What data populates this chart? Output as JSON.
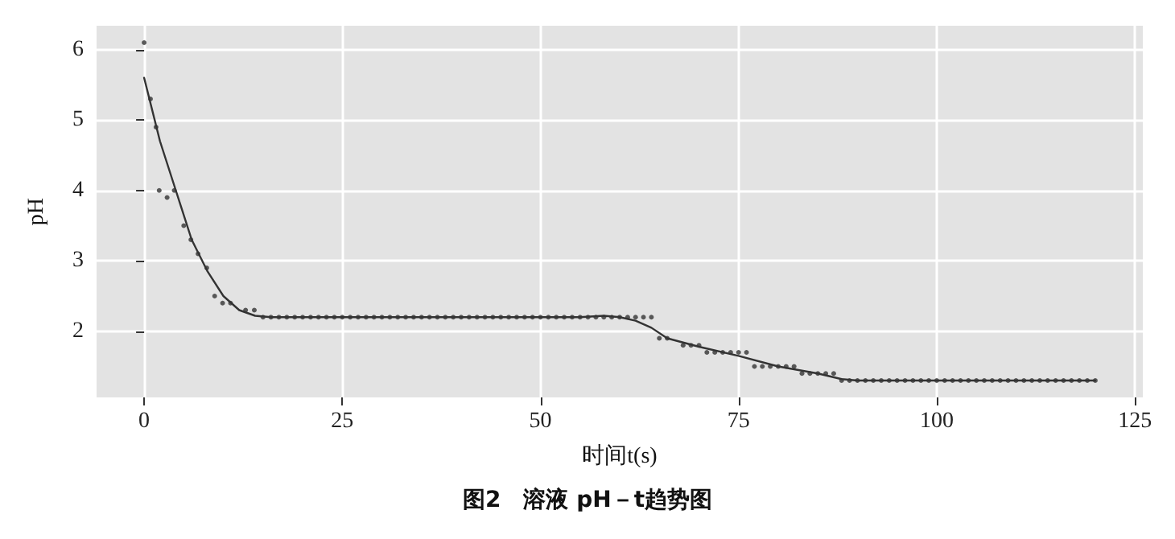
{
  "chart_data": {
    "type": "scatter",
    "title": "图2　溶液 pH－t趋势图",
    "xlabel": "时间t(s)",
    "ylabel": "pH",
    "xlim": [
      -6,
      126
    ],
    "ylim": [
      1.06,
      6.34
    ],
    "xticks": [
      0,
      25,
      50,
      75,
      100,
      125
    ],
    "yticks": [
      2,
      3,
      4,
      5,
      6
    ],
    "grid": true,
    "series": [
      {
        "marker": "circle",
        "color": "#333333",
        "x": [
          0,
          0.8,
          1.5,
          1.9,
          2.9,
          3.8,
          5,
          5.9,
          6.8,
          7.9,
          8.9,
          9.9,
          10.9,
          12.8,
          13.9,
          15,
          16,
          17,
          18,
          19,
          20,
          21,
          22,
          23,
          24,
          25,
          26,
          27,
          28,
          29,
          30,
          31,
          32,
          33,
          34,
          35,
          36,
          37,
          38,
          39,
          40,
          41,
          42,
          43,
          44,
          45,
          46,
          47,
          48,
          49,
          50,
          51,
          52,
          53,
          54,
          55,
          56,
          57,
          58,
          59,
          60,
          61,
          62,
          63,
          64,
          65,
          66,
          68,
          69,
          70,
          71,
          72,
          73,
          74,
          75,
          76,
          77,
          78,
          79,
          80,
          81,
          82,
          83,
          84,
          85,
          86,
          87,
          88,
          89,
          90,
          91,
          92,
          93,
          94,
          95,
          96,
          97,
          98,
          99,
          100,
          101,
          102,
          103,
          104,
          105,
          106,
          107,
          108,
          109,
          110,
          111,
          112,
          113,
          114,
          115,
          116,
          117,
          118,
          119,
          120
        ],
        "values": [
          6.1,
          5.3,
          4.9,
          4.0,
          3.9,
          4.0,
          3.5,
          3.3,
          3.1,
          2.9,
          2.5,
          2.4,
          2.4,
          2.3,
          2.3,
          2.2,
          2.2,
          2.2,
          2.2,
          2.2,
          2.2,
          2.2,
          2.2,
          2.2,
          2.2,
          2.2,
          2.2,
          2.2,
          2.2,
          2.2,
          2.2,
          2.2,
          2.2,
          2.2,
          2.2,
          2.2,
          2.2,
          2.2,
          2.2,
          2.2,
          2.2,
          2.2,
          2.2,
          2.2,
          2.2,
          2.2,
          2.2,
          2.2,
          2.2,
          2.2,
          2.2,
          2.2,
          2.2,
          2.2,
          2.2,
          2.2,
          2.2,
          2.2,
          2.2,
          2.2,
          2.2,
          2.2,
          2.2,
          2.2,
          2.2,
          1.9,
          1.9,
          1.8,
          1.8,
          1.8,
          1.7,
          1.7,
          1.7,
          1.7,
          1.7,
          1.7,
          1.5,
          1.5,
          1.5,
          1.5,
          1.5,
          1.5,
          1.4,
          1.4,
          1.4,
          1.4,
          1.4,
          1.3,
          1.3,
          1.3,
          1.3,
          1.3,
          1.3,
          1.3,
          1.3,
          1.3,
          1.3,
          1.3,
          1.3,
          1.3,
          1.3,
          1.3,
          1.3,
          1.3,
          1.3,
          1.3,
          1.3,
          1.3,
          1.3,
          1.3,
          1.3,
          1.3,
          1.3,
          1.3,
          1.3,
          1.3,
          1.3,
          1.3,
          1.3,
          1.3
        ]
      },
      {
        "type": "line",
        "marker": "none",
        "line_style": "solid",
        "color": "#333333",
        "x": [
          0,
          2,
          4,
          6,
          8,
          10,
          12,
          14,
          16,
          55,
          58,
          60,
          62,
          64,
          66,
          70,
          75,
          80,
          85,
          88,
          90,
          120
        ],
        "values": [
          5.6,
          4.7,
          4.0,
          3.3,
          2.85,
          2.5,
          2.3,
          2.22,
          2.2,
          2.2,
          2.22,
          2.2,
          2.15,
          2.05,
          1.9,
          1.78,
          1.65,
          1.5,
          1.4,
          1.32,
          1.3,
          1.3
        ]
      }
    ]
  }
}
